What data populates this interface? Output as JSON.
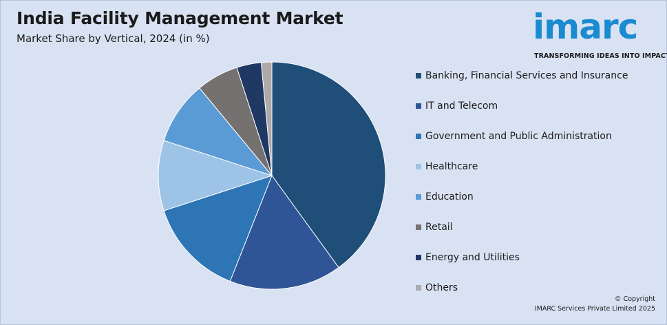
{
  "header": {
    "title": "India Facility Management Market",
    "subtitle": "Market Share by Vertical, 2024 (in %)"
  },
  "logo": {
    "name": "imarc",
    "tagline": "TRANSFORMING IDEAS INTO IMPACT",
    "color": "#1b8bd0"
  },
  "copyright": {
    "line1": "© Copyright",
    "line2": "IMARC Services Private Limited 2025"
  },
  "chart_data": {
    "type": "pie",
    "title": "India Facility Management Market",
    "subtitle": "Market Share by Vertical, 2024 (in %)",
    "legend_position": "right",
    "categories": [
      "Banking, Financial Services and Insurance",
      "IT and Telecom",
      "Government and Public Administration",
      "Healthcare",
      "Education",
      "Retail",
      "Energy and Utilities",
      "Others"
    ],
    "values": [
      40,
      16,
      14,
      10,
      9,
      6,
      3.5,
      1.5
    ],
    "colors": [
      "#1f4e79",
      "#2f5597",
      "#2e75b6",
      "#9dc3e6",
      "#5b9bd5",
      "#767171",
      "#203864",
      "#aeaaaa"
    ]
  }
}
